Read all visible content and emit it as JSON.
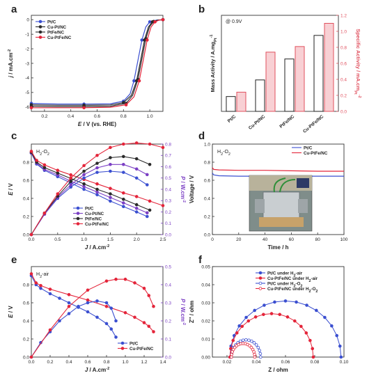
{
  "panels": [
    {
      "id": "a",
      "label": "a",
      "type": "line",
      "xlabel_italic": "E",
      "xlabel_rest": " / V (vs. RHE)",
      "ylabel_italic": "j",
      "ylabel_rest": " / mA.cm",
      "ylabel_sup": "-2",
      "xlim": [
        0.1,
        1.1
      ],
      "ylim": [
        -6.3,
        0.3
      ],
      "xticks": [
        0.2,
        0.4,
        0.6,
        0.8,
        1.0
      ],
      "yticks": [
        0,
        -1,
        -2,
        -3,
        -4,
        -5,
        -6
      ],
      "legend": [
        "Pt/C",
        "Cu-Pt/NC",
        "PtFe/NC",
        "Cu-PtFe/NC"
      ],
      "colors": [
        "#3b4fd0",
        "#2a2a2a",
        "#2a2a2a",
        "#e4253a"
      ],
      "markers": [
        "circle",
        "circle",
        "circle",
        "circle"
      ],
      "series": [
        {
          "name": "Pt/C",
          "x": [
            0.1,
            0.3,
            0.5,
            0.7,
            0.8,
            0.85,
            0.88,
            0.91,
            0.94,
            0.97,
            1.0,
            1.05,
            1.1
          ],
          "y": [
            -5.75,
            -5.8,
            -5.8,
            -5.78,
            -5.6,
            -5.1,
            -4.2,
            -2.8,
            -1.4,
            -0.5,
            -0.15,
            -0.03,
            0
          ]
        },
        {
          "name": "Cu-Pt/NC",
          "x": [
            0.1,
            0.3,
            0.5,
            0.7,
            0.8,
            0.86,
            0.9,
            0.93,
            0.96,
            0.99,
            1.02,
            1.06,
            1.1
          ],
          "y": [
            -5.85,
            -5.88,
            -5.88,
            -5.86,
            -5.7,
            -5.2,
            -4.2,
            -2.8,
            -1.4,
            -0.5,
            -0.15,
            -0.03,
            0
          ]
        },
        {
          "name": "PtFe/NC",
          "x": [
            0.1,
            0.3,
            0.5,
            0.7,
            0.82,
            0.87,
            0.91,
            0.94,
            0.97,
            1.0,
            1.03,
            1.07,
            1.1
          ],
          "y": [
            -5.95,
            -5.97,
            -5.97,
            -5.95,
            -5.75,
            -5.2,
            -4.1,
            -2.7,
            -1.3,
            -0.45,
            -0.12,
            -0.02,
            0
          ]
        },
        {
          "name": "Cu-PtFe/NC",
          "x": [
            0.1,
            0.3,
            0.5,
            0.7,
            0.82,
            0.88,
            0.92,
            0.95,
            0.98,
            1.01,
            1.04,
            1.07,
            1.1
          ],
          "y": [
            -6.05,
            -6.05,
            -6.05,
            -6.02,
            -5.85,
            -5.3,
            -4.2,
            -2.8,
            -1.4,
            -0.5,
            -0.15,
            -0.03,
            0
          ]
        }
      ]
    },
    {
      "id": "b",
      "label": "b",
      "type": "bar",
      "annotation": "@ 0.9V",
      "ylabel_left": "Mass Activity / A.mg",
      "ylabel_left_sub": "Pt",
      "ylabel_left_sup": "-1",
      "ylabel_right": "Specific Activity / mA.cm",
      "ylabel_right_sub": "Pt",
      "ylabel_right_sup": "-2",
      "categories": [
        "Pt/C",
        "Cu-Pt/NC",
        "PtFe/NC",
        "Cu-PtFe/NC"
      ],
      "mass_activity": [
        0.17,
        0.36,
        0.6,
        0.87
      ],
      "specific_activity": [
        0.24,
        0.74,
        0.81,
        1.1
      ],
      "ylim_right": [
        0.0,
        1.2
      ],
      "yticks_right": [
        0.0,
        0.2,
        0.4,
        0.6,
        0.8,
        1.0,
        1.2
      ],
      "ylim_left": [
        0,
        1.1
      ],
      "colors": {
        "mass": "#1f1f1f",
        "specific": "#e0505e",
        "specific_fill": "#f8d0d4"
      }
    },
    {
      "id": "c",
      "label": "c",
      "type": "line",
      "annotation": "H",
      "annotation_sub": "2",
      "annotation_mid": "-O",
      "annotation_sub2": "2",
      "xlabel_italic": "J",
      "xlabel_rest": " / A.cm",
      "xlabel_sup": "-2",
      "ylabel_italic": "E",
      "ylabel_rest": " / V",
      "y2label_italic": "P",
      "y2label_rest": " / W.cm",
      "y2label_sup": "-2",
      "xlim": [
        0,
        2.5
      ],
      "ylim": [
        0,
        1.0
      ],
      "y2lim": [
        0,
        0.8
      ],
      "xticks": [
        0.0,
        0.5,
        1.0,
        1.5,
        2.0,
        2.5
      ],
      "yticks": [
        0.0,
        0.2,
        0.4,
        0.6,
        0.8
      ],
      "y2ticks": [
        0.0,
        0.1,
        0.2,
        0.3,
        0.4,
        0.5,
        0.6,
        0.7,
        0.8
      ],
      "legend": [
        "Pt/C",
        "Cu-Pt/NC",
        "PtFe/NC",
        "Cu-PtFe/NC"
      ],
      "colors": [
        "#3b4fd0",
        "#7b3fc4",
        "#2a2a2a",
        "#e4253a"
      ],
      "voltage": [
        {
          "name": "Pt/C",
          "x": [
            0,
            0.1,
            0.25,
            0.5,
            0.75,
            1.0,
            1.25,
            1.5,
            1.75,
            2.0,
            2.2
          ],
          "y": [
            0.9,
            0.78,
            0.71,
            0.64,
            0.57,
            0.5,
            0.44,
            0.37,
            0.31,
            0.25,
            0.2
          ]
        },
        {
          "name": "Cu-Pt/NC",
          "x": [
            0,
            0.1,
            0.25,
            0.5,
            0.75,
            1.0,
            1.25,
            1.5,
            1.75,
            2.0,
            2.2
          ],
          "y": [
            0.9,
            0.79,
            0.72,
            0.66,
            0.59,
            0.53,
            0.47,
            0.41,
            0.35,
            0.29,
            0.24
          ]
        },
        {
          "name": "PtFe/NC",
          "x": [
            0,
            0.1,
            0.25,
            0.5,
            0.75,
            1.0,
            1.25,
            1.5,
            1.75,
            2.0,
            2.25
          ],
          "y": [
            0.91,
            0.8,
            0.74,
            0.68,
            0.62,
            0.56,
            0.5,
            0.45,
            0.39,
            0.33,
            0.27
          ]
        },
        {
          "name": "Cu-PtFe/NC",
          "x": [
            0,
            0.1,
            0.25,
            0.5,
            0.75,
            1.0,
            1.25,
            1.5,
            1.75,
            2.0,
            2.25,
            2.5
          ],
          "y": [
            0.92,
            0.82,
            0.77,
            0.71,
            0.66,
            0.61,
            0.56,
            0.51,
            0.46,
            0.42,
            0.37,
            0.32
          ]
        }
      ],
      "power": [
        {
          "name": "Pt/C",
          "x": [
            0,
            0.25,
            0.5,
            0.75,
            1.0,
            1.25,
            1.5,
            1.75,
            2.0,
            2.2
          ],
          "y": [
            0,
            0.18,
            0.32,
            0.42,
            0.5,
            0.55,
            0.56,
            0.55,
            0.5,
            0.44
          ]
        },
        {
          "name": "Cu-Pt/NC",
          "x": [
            0,
            0.25,
            0.5,
            0.75,
            1.0,
            1.25,
            1.5,
            1.75,
            2.0,
            2.2
          ],
          "y": [
            0,
            0.18,
            0.33,
            0.44,
            0.53,
            0.59,
            0.62,
            0.62,
            0.58,
            0.53
          ]
        },
        {
          "name": "PtFe/NC",
          "x": [
            0,
            0.25,
            0.5,
            0.75,
            1.0,
            1.25,
            1.5,
            1.75,
            2.0,
            2.25
          ],
          "y": [
            0,
            0.19,
            0.34,
            0.47,
            0.56,
            0.63,
            0.68,
            0.69,
            0.67,
            0.62
          ]
        },
        {
          "name": "Cu-PtFe/NC",
          "x": [
            0,
            0.25,
            0.5,
            0.75,
            1.0,
            1.25,
            1.5,
            1.75,
            2.0,
            2.25,
            2.5
          ],
          "y": [
            0,
            0.19,
            0.36,
            0.5,
            0.61,
            0.7,
            0.77,
            0.8,
            0.81,
            0.8,
            0.77
          ]
        }
      ]
    },
    {
      "id": "d",
      "label": "d",
      "type": "line",
      "annotation": "H",
      "annotation_sub": "2",
      "annotation_mid": "-O",
      "annotation_sub2": "2",
      "xlabel": "Time / h",
      "ylabel": "Voltage / V",
      "xlim": [
        0,
        100
      ],
      "ylim": [
        0,
        1.0
      ],
      "xticks": [
        0,
        20,
        40,
        60,
        80,
        100
      ],
      "yticks": [
        0.0,
        0.2,
        0.4,
        0.6,
        0.8,
        1.0
      ],
      "legend": [
        "Pt/C",
        "Cu-PtFe/NC"
      ],
      "colors": [
        "#3b4fd0",
        "#e4253a"
      ],
      "series": [
        {
          "name": "Pt/C",
          "x": [
            0,
            1,
            5,
            20,
            40,
            60,
            80,
            100
          ],
          "y": [
            0.68,
            0.66,
            0.65,
            0.645,
            0.645,
            0.645,
            0.645,
            0.645
          ]
        },
        {
          "name": "Cu-PtFe/NC",
          "x": [
            0,
            1,
            5,
            20,
            40,
            60,
            80,
            100
          ],
          "y": [
            0.74,
            0.72,
            0.715,
            0.71,
            0.71,
            0.705,
            0.7,
            0.7
          ]
        }
      ]
    },
    {
      "id": "e",
      "label": "e",
      "type": "line",
      "annotation": "H",
      "annotation_sub": "2",
      "annotation_mid": "-air",
      "xlabel_italic": "J",
      "xlabel_rest": " / A.cm",
      "xlabel_sup": "-2",
      "ylabel_italic": "E",
      "ylabel_rest": " / V",
      "y2label_italic": "P",
      "y2label_rest": " / W.cm",
      "y2label_sup": "-2",
      "xlim": [
        0,
        1.4
      ],
      "ylim": [
        0,
        1.0
      ],
      "y2lim": [
        0,
        0.5
      ],
      "xticks": [
        0.0,
        0.2,
        0.4,
        0.6,
        0.8,
        1.0,
        1.2,
        1.4
      ],
      "yticks": [
        0.0,
        0.2,
        0.4,
        0.6,
        0.8
      ],
      "y2ticks": [
        0.0,
        0.1,
        0.2,
        0.3,
        0.4,
        0.5
      ],
      "legend": [
        "Pt/C",
        "Cu-PtFe/NC"
      ],
      "colors": [
        "#3b4fd0",
        "#e4253a"
      ],
      "voltage": [
        {
          "name": "Pt/C",
          "x": [
            0,
            0.05,
            0.1,
            0.2,
            0.3,
            0.4,
            0.5,
            0.6,
            0.7,
            0.8,
            0.85,
            0.9
          ],
          "y": [
            0.9,
            0.8,
            0.76,
            0.7,
            0.65,
            0.6,
            0.55,
            0.5,
            0.44,
            0.37,
            0.31,
            0.22
          ]
        },
        {
          "name": "Cu-PtFe/NC",
          "x": [
            0,
            0.05,
            0.1,
            0.2,
            0.4,
            0.6,
            0.8,
            1.0,
            1.1,
            1.2,
            1.25,
            1.3
          ],
          "y": [
            0.92,
            0.82,
            0.79,
            0.75,
            0.69,
            0.63,
            0.56,
            0.49,
            0.44,
            0.38,
            0.34,
            0.28
          ]
        }
      ],
      "power": [
        {
          "name": "Pt/C",
          "x": [
            0,
            0.1,
            0.2,
            0.3,
            0.4,
            0.5,
            0.6,
            0.7,
            0.8,
            0.85,
            0.9
          ],
          "y": [
            0,
            0.08,
            0.14,
            0.2,
            0.24,
            0.28,
            0.3,
            0.31,
            0.3,
            0.27,
            0.2
          ]
        },
        {
          "name": "Cu-PtFe/NC",
          "x": [
            0,
            0.2,
            0.4,
            0.6,
            0.8,
            0.9,
            1.0,
            1.1,
            1.2,
            1.25,
            1.3
          ],
          "y": [
            0,
            0.15,
            0.28,
            0.37,
            0.42,
            0.43,
            0.43,
            0.41,
            0.38,
            0.34,
            0.28
          ]
        }
      ]
    },
    {
      "id": "f",
      "label": "f",
      "type": "line",
      "xlabel": "Z / ohm",
      "ylabel": "Z'' / ohm",
      "xlim": [
        0.01,
        0.1
      ],
      "ylim": [
        0,
        0.05
      ],
      "xticks": [
        0.02,
        0.04,
        0.06,
        0.08,
        0.1
      ],
      "yticks": [
        0.0,
        0.01,
        0.02,
        0.03,
        0.04,
        0.05
      ],
      "legend": [
        {
          "pre": "Pt/C under H",
          "sub": "2",
          "post": "-air"
        },
        {
          "pre": "Cu-PtFe/NC under H",
          "sub": "2",
          "post": "-air"
        },
        {
          "pre": "Pt/C under H",
          "sub": "2",
          "post": "-O",
          "sub2": "2"
        },
        {
          "pre": "Cu-PtFe/NC under H",
          "sub": "2",
          "post": "-O",
          "sub2": "2"
        }
      ],
      "colors": [
        "#3b4fd0",
        "#e4253a",
        "#3b4fd0",
        "#e4253a"
      ],
      "filled": [
        true,
        true,
        false,
        false
      ],
      "semicircles": [
        {
          "x0": 0.022,
          "x1": 0.098,
          "ypeak": 0.031
        },
        {
          "x0": 0.022,
          "x1": 0.079,
          "ypeak": 0.024
        },
        {
          "x0": 0.023,
          "x1": 0.043,
          "ypeak": 0.0095
        },
        {
          "x0": 0.023,
          "x1": 0.039,
          "ypeak": 0.0075
        }
      ]
    }
  ],
  "chart_data": [
    {
      "type": "line",
      "xlabel": "E / V (vs. RHE)",
      "ylabel": "j / mA.cm-2",
      "xlim": [
        0.1,
        1.1
      ],
      "ylim": [
        -6.3,
        0.3
      ]
    },
    {
      "type": "bar",
      "categories": [
        "Pt/C",
        "Cu-Pt/NC",
        "PtFe/NC",
        "Cu-PtFe/NC"
      ],
      "series": [
        {
          "name": "Mass Activity / A.mgPt-1",
          "values": [
            0.17,
            0.36,
            0.6,
            0.87
          ]
        },
        {
          "name": "Specific Activity / mA.cmPt-2",
          "values": [
            0.24,
            0.74,
            0.81,
            1.1
          ]
        }
      ]
    },
    {
      "type": "line",
      "xlabel": "J / A.cm-2",
      "ylabel": "E / V",
      "xlim": [
        0,
        2.5
      ],
      "ylim": [
        0,
        1.0
      ]
    },
    {
      "type": "line",
      "xlabel": "Time / h",
      "ylabel": "Voltage / V",
      "xlim": [
        0,
        100
      ],
      "ylim": [
        0,
        1.0
      ]
    },
    {
      "type": "line",
      "xlabel": "J / A.cm-2",
      "ylabel": "E / V",
      "xlim": [
        0,
        1.4
      ],
      "ylim": [
        0,
        1.0
      ]
    },
    {
      "type": "scatter",
      "xlabel": "Z / ohm",
      "ylabel": "Z'' / ohm",
      "xlim": [
        0.01,
        0.1
      ],
      "ylim": [
        0,
        0.05
      ]
    }
  ]
}
